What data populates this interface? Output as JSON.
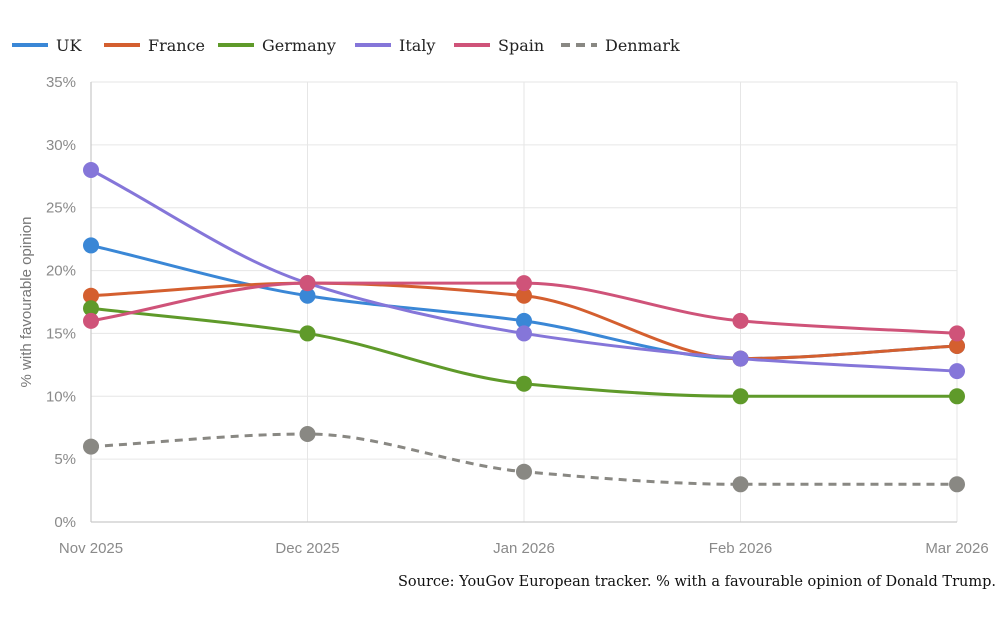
{
  "chart_data": {
    "type": "line",
    "title": "",
    "xlabel": "",
    "ylabel": "% with favourable opinion",
    "categories": [
      "Nov 2025",
      "Dec 2025",
      "Jan 2026",
      "Feb 2026",
      "Mar 2026"
    ],
    "ylim": [
      0,
      35
    ],
    "yticks": [
      0,
      5,
      10,
      15,
      20,
      25,
      30,
      35
    ],
    "ytick_suffix": "%",
    "grid": true,
    "legend_position": "top-left",
    "series": [
      {
        "name": "UK",
        "values": [
          22,
          18,
          16,
          13,
          14
        ],
        "color": "#3a87d6",
        "dashed": false
      },
      {
        "name": "France",
        "values": [
          18,
          19,
          18,
          13,
          14
        ],
        "color": "#d45f2f",
        "dashed": false
      },
      {
        "name": "Germany",
        "values": [
          17,
          15,
          11,
          10,
          10
        ],
        "color": "#5f9a2a",
        "dashed": false
      },
      {
        "name": "Italy",
        "values": [
          28,
          19,
          15,
          13,
          12
        ],
        "color": "#8576d9",
        "dashed": false
      },
      {
        "name": "Spain",
        "values": [
          16,
          19,
          19,
          16,
          15
        ],
        "color": "#cf5379",
        "dashed": false
      },
      {
        "name": "Denmark",
        "values": [
          6,
          7,
          4,
          3,
          3
        ],
        "color": "#898883",
        "dashed": true
      }
    ],
    "source_note": "Source: YouGov European tracker. % with a favourable opinion of Donald Trump."
  }
}
